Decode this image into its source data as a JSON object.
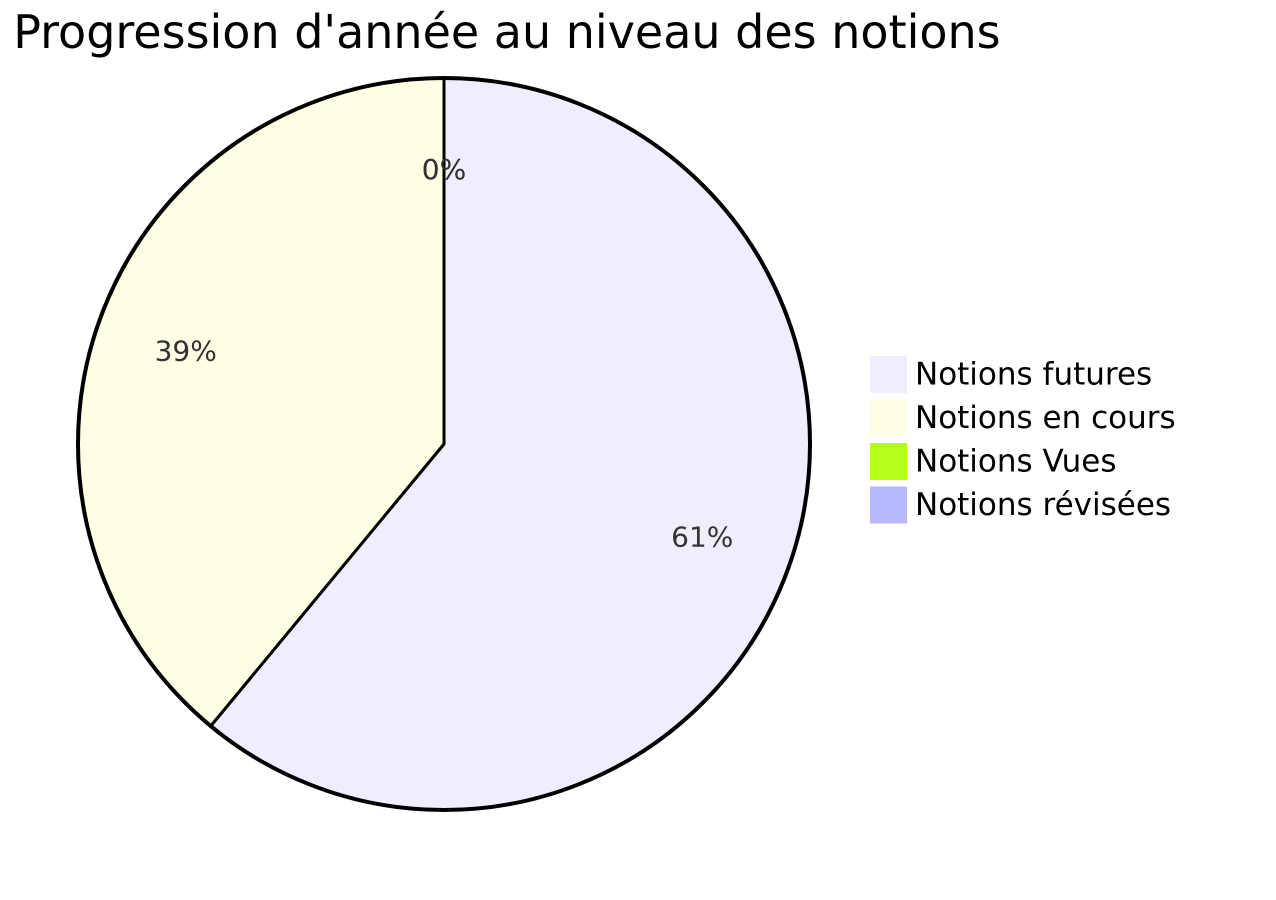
{
  "title": "- Progression d'année au niveau des notions",
  "colors": {
    "text": "#333333",
    "stroke": "#000000",
    "background": "#ffffff"
  },
  "chart_data": {
    "type": "pie",
    "title": "- Progression d'année au niveau des notions",
    "start_angle": "top",
    "direction": "clockwise",
    "legend": "right",
    "slices": [
      {
        "label": "Notions futures",
        "value": 61,
        "display": "61%",
        "color": "#eeeeff"
      },
      {
        "label": "Notions en cours",
        "value": 39,
        "display": "39%",
        "color": "#ffffe6"
      },
      {
        "label": "Notions Vues",
        "value": 0,
        "display": "0%",
        "color": "#b3ff1a"
      },
      {
        "label": "Notions révisées",
        "value": 0,
        "display": "0%",
        "color": "#b8b8ff"
      }
    ]
  }
}
